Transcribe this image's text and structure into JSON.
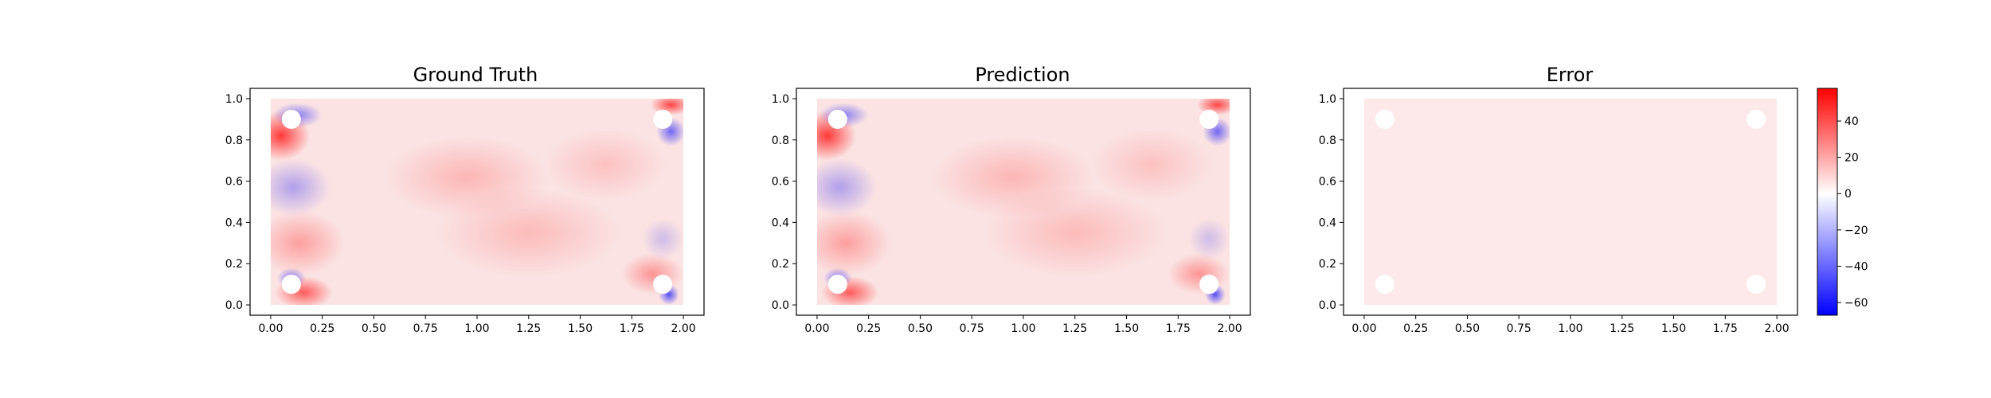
{
  "colors": {
    "positive": "#ff0000",
    "negative": "#0000ff",
    "zero": "#ffffff"
  },
  "colorbar": {
    "vmin": -67,
    "vmax": 58,
    "ticks": [
      40,
      20,
      0,
      -20,
      -40,
      -60
    ],
    "tick_labels": [
      "40",
      "20",
      "0",
      "−20",
      "−40",
      "−60"
    ]
  },
  "chart_data": [
    {
      "type": "heatmap",
      "title": "Ground Truth",
      "xlim": [
        -0.1,
        2.1
      ],
      "ylim": [
        -0.05,
        1.05
      ],
      "xticks": [
        "0.00",
        "0.25",
        "0.50",
        "0.75",
        "1.00",
        "1.25",
        "1.50",
        "1.75",
        "2.00"
      ],
      "yticks": [
        "0.0",
        "0.2",
        "0.4",
        "0.6",
        "0.8",
        "1.0"
      ],
      "holes": [
        [
          0.1,
          0.9
        ],
        [
          1.9,
          0.9
        ],
        [
          0.1,
          0.1
        ],
        [
          1.9,
          0.1
        ]
      ],
      "value_range": [
        -67,
        40
      ]
    },
    {
      "type": "heatmap",
      "title": "Prediction",
      "xlim": [
        -0.1,
        2.1
      ],
      "ylim": [
        -0.05,
        1.05
      ],
      "xticks": [
        "0.00",
        "0.25",
        "0.50",
        "0.75",
        "1.00",
        "1.25",
        "1.50",
        "1.75",
        "2.00"
      ],
      "yticks": [
        "0.0",
        "0.2",
        "0.4",
        "0.6",
        "0.8",
        "1.0"
      ],
      "holes": [
        [
          0.1,
          0.9
        ],
        [
          1.9,
          0.9
        ],
        [
          0.1,
          0.1
        ],
        [
          1.9,
          0.1
        ]
      ],
      "value_range": [
        -67,
        40
      ]
    },
    {
      "type": "heatmap",
      "title": "Error",
      "xlim": [
        -0.1,
        2.1
      ],
      "ylim": [
        -0.05,
        1.05
      ],
      "xticks": [
        "0.00",
        "0.25",
        "0.50",
        "0.75",
        "1.00",
        "1.25",
        "1.50",
        "1.75",
        "2.00"
      ],
      "yticks": [
        "0.0",
        "0.2",
        "0.4",
        "0.6",
        "0.8",
        "1.0"
      ],
      "holes": [
        [
          0.1,
          0.9
        ],
        [
          1.9,
          0.9
        ],
        [
          0.1,
          0.1
        ],
        [
          1.9,
          0.1
        ]
      ],
      "value_range": [
        2,
        5
      ]
    }
  ]
}
